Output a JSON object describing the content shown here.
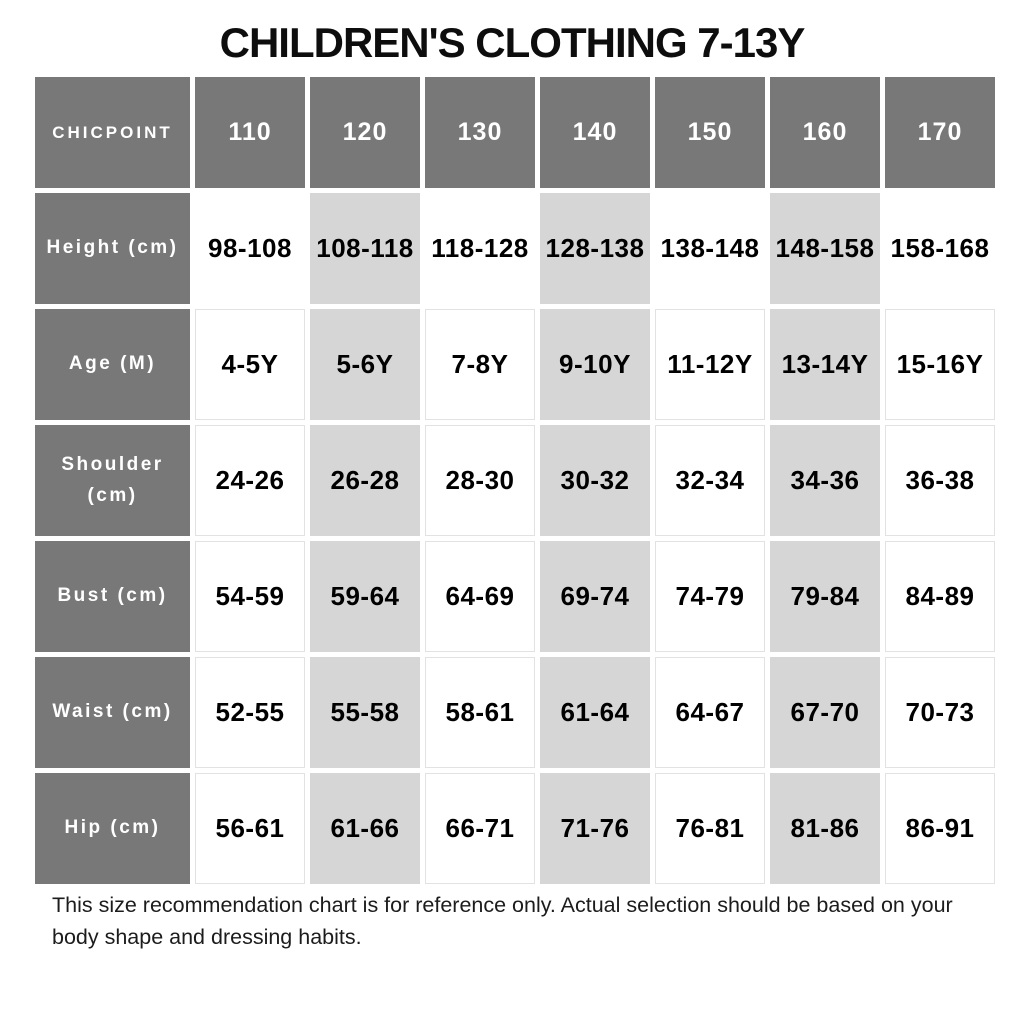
{
  "title": "CHILDREN'S CLOTHING 7-13Y",
  "chart_data": {
    "type": "table",
    "title": "CHILDREN'S CLOTHING 7-13Y",
    "columns": [
      "CHICPOINT",
      "110",
      "120",
      "130",
      "140",
      "150",
      "160",
      "170"
    ],
    "rows": [
      [
        "Height (cm)",
        "98-108",
        "108-118",
        "118-128",
        "128-138",
        "138-148",
        "148-158",
        "158-168"
      ],
      [
        "Age (M)",
        "4-5Y",
        "5-6Y",
        "7-8Y",
        "9-10Y",
        "11-12Y",
        "13-14Y",
        "15-16Y"
      ],
      [
        "Shoulder (cm)",
        "24-26",
        "26-28",
        "28-30",
        "30-32",
        "32-34",
        "34-36",
        "36-38"
      ],
      [
        "Bust (cm)",
        "54-59",
        "59-64",
        "64-69",
        "69-74",
        "74-79",
        "79-84",
        "84-89"
      ],
      [
        "Waist (cm)",
        "52-55",
        "55-58",
        "58-61",
        "61-64",
        "64-67",
        "67-70",
        "70-73"
      ],
      [
        "Hip (cm)",
        "56-61",
        "61-66",
        "66-71",
        "71-76",
        "76-81",
        "81-86",
        "86-91"
      ]
    ],
    "layout": {
      "striped_columns": [
        "120",
        "140",
        "160"
      ],
      "header_style": "dark-gray",
      "grid": "white-gutters"
    }
  },
  "footnote": "This size recommendation chart is for reference only. Actual selection should be based on your body shape and dressing habits.",
  "colors": {
    "header_bg": "#787878",
    "stripe_bg": "#d6d6d6",
    "cell_bg": "#ffffff",
    "cell_border": "#e2e2e2",
    "text_dark": "#0d0d0d",
    "label_text": "#ffffff"
  }
}
